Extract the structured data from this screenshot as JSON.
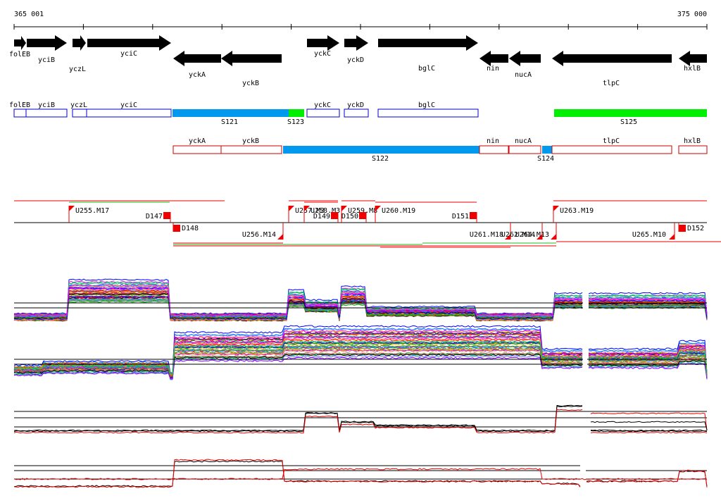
{
  "coords": {
    "start": "365 001",
    "end": "375 000"
  },
  "colors": {
    "black": "#000000",
    "blue_box": "#0000cc",
    "red_box": "#cc0000",
    "seg_blue": "#0099ee",
    "seg_green": "#00ee00",
    "marker_red": "#ee0000",
    "red_trace": "#ee0000"
  },
  "genes": [
    {
      "name": "folEB",
      "strand": "+",
      "fill": "black"
    },
    {
      "name": "yciB",
      "strand": "+",
      "fill": "white"
    },
    {
      "name": "yczL",
      "strand": "+",
      "fill": "white"
    },
    {
      "name": "yciC",
      "strand": "+",
      "fill": "white"
    },
    {
      "name": "yckA",
      "strand": "-",
      "fill": "white"
    },
    {
      "name": "yckB",
      "strand": "-",
      "fill": "white"
    },
    {
      "name": "yckC",
      "strand": "+",
      "fill": "white"
    },
    {
      "name": "yckD",
      "strand": "+",
      "fill": "white"
    },
    {
      "name": "bglC",
      "strand": "+",
      "fill": "black"
    },
    {
      "name": "nin",
      "strand": "-",
      "fill": "black"
    },
    {
      "name": "nucA",
      "strand": "-",
      "fill": "black"
    },
    {
      "name": "tlpC",
      "strand": "-",
      "fill": "black"
    },
    {
      "name": "hxlB",
      "strand": "-",
      "fill": "black"
    }
  ],
  "plus_track": {
    "boxes": [
      "folEB",
      "yciB",
      "yczL",
      "yciC",
      "yckC",
      "yckD",
      "bglC"
    ],
    "segments": [
      {
        "name": "S121",
        "color": "seg_blue"
      },
      {
        "name": "S123",
        "color": "seg_green"
      },
      {
        "name": "S125",
        "color": "seg_green"
      }
    ]
  },
  "minus_track": {
    "boxes": [
      "yckA",
      "yckB",
      "nin",
      "nucA",
      "tlpC",
      "hxlB"
    ],
    "segments": [
      {
        "name": "S122",
        "color": "seg_blue"
      },
      {
        "name": "S124",
        "color": "seg_blue"
      }
    ]
  },
  "upshifts_plus": [
    "U255.M17",
    "U257.M3",
    "U258.M3",
    "U259.M8",
    "U260.M19",
    "U263.M19"
  ],
  "downshifts_plus": [
    "D147",
    "D149",
    "D150",
    "D151"
  ],
  "upshifts_minus": [
    "U256.M14",
    "U261.M18",
    "U262.M14",
    "U264.M13",
    "U265.M10"
  ],
  "downshifts_minus": [
    "D148",
    "D152"
  ],
  "expression_panels": [
    "plus-strand-profiles",
    "minus-strand-profiles",
    "plus-strand-summary",
    "minus-strand-summary"
  ]
}
